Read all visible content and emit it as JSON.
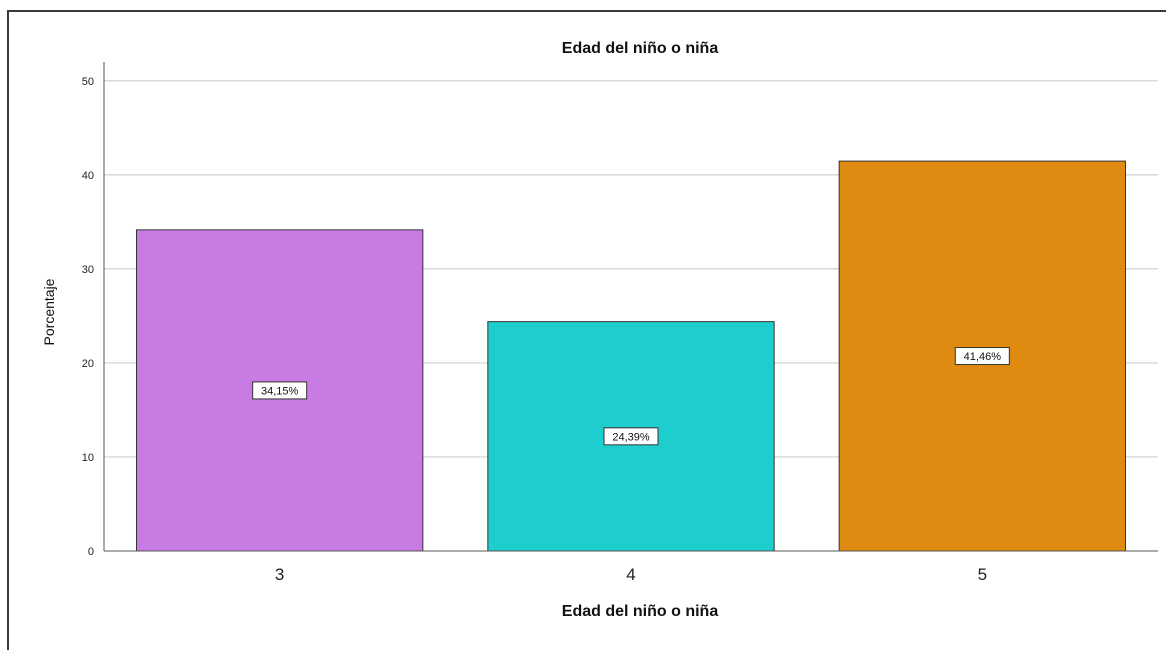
{
  "chart_data": {
    "type": "bar",
    "title": "Edad del niño o niña",
    "xlabel": "Edad del niño o niña",
    "ylabel": "Porcentaje",
    "categories": [
      "3",
      "4",
      "5"
    ],
    "values": [
      34.15,
      24.39,
      41.46
    ],
    "data_labels": [
      "34,15%",
      "24,39%",
      "41,46%"
    ],
    "bar_colors": [
      "#c97be4",
      "#1ecdcd",
      "#df8a10"
    ],
    "ylim": [
      0,
      52
    ],
    "yticks": [
      0,
      10,
      20,
      30,
      40,
      50
    ],
    "grid": true,
    "legend": "none"
  }
}
